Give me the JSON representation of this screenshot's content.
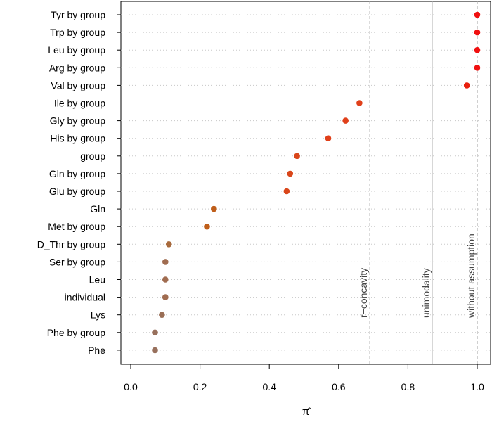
{
  "chart_data": {
    "type": "scatter",
    "title": "",
    "xlabel": "π̂",
    "ylabel": "",
    "xlim": [
      -0.03,
      1.03
    ],
    "x_ticks": [
      0.0,
      0.2,
      0.4,
      0.6,
      0.8,
      1.0
    ],
    "x_tick_labels": [
      "0.0",
      "0.2",
      "0.4",
      "0.6",
      "0.8",
      "1.0"
    ],
    "grid": "horizontal dotted",
    "categories": [
      "Tyr by group",
      "Trp by group",
      "Leu by group",
      "Arg by group",
      "Val by group",
      "Ile by group",
      "Gly by group",
      "His by group",
      "group",
      "Gln by group",
      "Glu by group",
      "Gln",
      "Met by group",
      "D_Thr by group",
      "Ser by group",
      "Leu",
      "individual",
      "Lys",
      "Phe by group",
      "Phe"
    ],
    "values": [
      1.0,
      1.0,
      1.0,
      1.0,
      0.97,
      0.66,
      0.62,
      0.57,
      0.48,
      0.46,
      0.45,
      0.24,
      0.22,
      0.11,
      0.1,
      0.1,
      0.1,
      0.09,
      0.07,
      0.07
    ],
    "point_colors": [
      "#f01010",
      "#f01010",
      "#f01010",
      "#f01010",
      "#e8200e",
      "#e0401a",
      "#e0401a",
      "#e0401a",
      "#d9461a",
      "#d9461a",
      "#d9461a",
      "#bf5e1a",
      "#bf5e1a",
      "#a86a3c",
      "#a06c50",
      "#a06c50",
      "#a06c50",
      "#9a6e56",
      "#98705c",
      "#98705c"
    ],
    "reference_lines": [
      {
        "x": 0.69,
        "label": "r−concavity",
        "style": "dashed",
        "color": "#b0b0b0"
      },
      {
        "x": 0.87,
        "label": "unimodality",
        "style": "solid",
        "color": "#b0b0b0"
      },
      {
        "x": 1.0,
        "label": "without assumption",
        "style": "dashed",
        "color": "#b0b0b0"
      }
    ]
  }
}
